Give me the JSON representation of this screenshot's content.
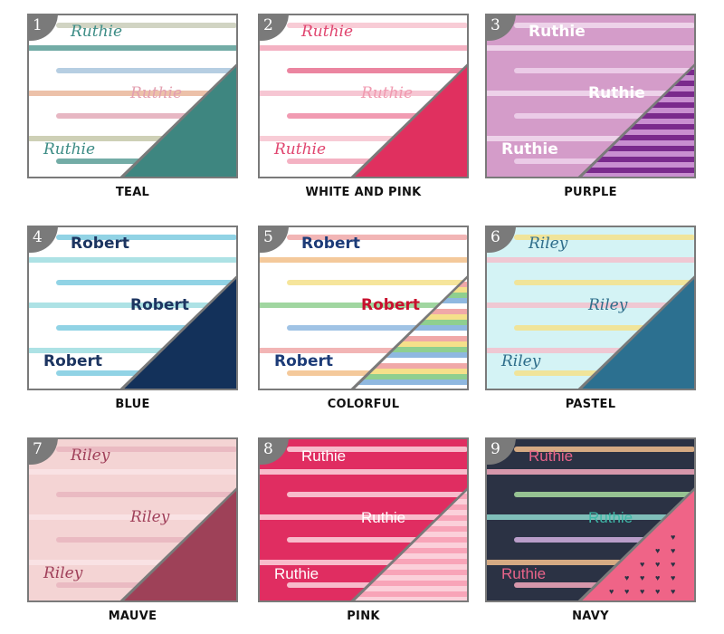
{
  "swatches": [
    {
      "number": "1",
      "label": "TEAL",
      "name": "Ruthie",
      "name_style": "script",
      "bg": "#ffffff",
      "stripes": [
        "#c9cdb8",
        "#5a9e96",
        "#a9c6dd",
        "#e9b69a",
        "#e3aab8",
        "#c5c8a9",
        "#5a9e96"
      ],
      "name_colors": [
        "#3c8c85",
        "#e3a0b0",
        "#3c8c85"
      ],
      "triangle": {
        "type": "solid",
        "color": "#3e8680"
      }
    },
    {
      "number": "2",
      "label": "WHITE AND PINK",
      "name": "Ruthie",
      "name_style": "script",
      "bg": "#ffffff",
      "stripes": [
        "#f7c3cf",
        "#f2a5b8",
        "#e8708f",
        "#f4bccb",
        "#ee8aa5",
        "#f7c3cf",
        "#f2a5b8"
      ],
      "name_colors": [
        "#e0456f",
        "#f09ab0",
        "#e0456f"
      ],
      "triangle": {
        "type": "solid",
        "color": "#e0305f"
      }
    },
    {
      "number": "3",
      "label": "PURPLE",
      "name": "Ruthie",
      "name_style": "bold",
      "bg": "#d49cc9",
      "stripes": [
        "#f1dcef",
        "#f1dcef",
        "#eed3ec",
        "#f1dcef",
        "#eed3ec",
        "#f1dcef",
        "#eed3ec"
      ],
      "name_colors": [
        "#ffffff",
        "#ffffff",
        "#ffffff"
      ],
      "triangle": {
        "type": "stripes",
        "colors": [
          "#7a2a8c",
          "#c98fd0"
        ]
      }
    },
    {
      "number": "4",
      "label": "BLUE",
      "name": "Robert",
      "name_style": "bold",
      "bg": "#ffffff",
      "stripes": [
        "#7ecbe0",
        "#9fdde0",
        "#7ecbe0",
        "#9fdde0",
        "#7ecbe0",
        "#9fdde0",
        "#7ecbe0"
      ],
      "name_colors": [
        "#1d3561",
        "#1d3561",
        "#1d3561"
      ],
      "triangle": {
        "type": "solid",
        "color": "#13315a"
      }
    },
    {
      "number": "5",
      "label": "COLORFUL",
      "name": "Robert",
      "name_style": "bold",
      "bg": "#ffffff",
      "stripes": [
        "#f0a8a8",
        "#f2c08a",
        "#f5e08a",
        "#8fcf8f",
        "#8fb8e0",
        "#f0a8a8",
        "#f2c08a"
      ],
      "name_colors": [
        "#1d3c78",
        "#c8102e",
        "#1d3c78"
      ],
      "triangle": {
        "type": "stripes",
        "colors": [
          "#f0a8a8",
          "#f5e08a",
          "#8fcf8f",
          "#8fb8e0",
          "#ffffff"
        ]
      }
    },
    {
      "number": "6",
      "label": "PASTEL",
      "name": "Riley",
      "name_style": "script",
      "bg": "#d4f3f5",
      "stripes": [
        "#f5e08a",
        "#f3c0cc",
        "#f5e08a",
        "#f3c0cc",
        "#f5e08a",
        "#f3c0cc",
        "#f5e08a"
      ],
      "name_colors": [
        "#2e6d8a",
        "#2e6d8a",
        "#2e6d8a"
      ],
      "triangle": {
        "type": "solid",
        "color": "#2c7090"
      }
    },
    {
      "number": "7",
      "label": "MAUVE",
      "name": "Riley",
      "name_style": "script",
      "bg": "#f4d4d4",
      "stripes": [
        "#e8b5be",
        "#f9e4e6",
        "#e8b5be",
        "#f9e4e6",
        "#e8b5be",
        "#f9e4e6",
        "#e8b5be"
      ],
      "name_colors": [
        "#a0405a",
        "#a0405a",
        "#a0405a"
      ],
      "triangle": {
        "type": "solid",
        "color": "#9e4158"
      }
    },
    {
      "number": "8",
      "label": "PINK",
      "name": "Ruthie",
      "name_style": "plain",
      "bg": "#e02d61",
      "stripes": [
        "#fbd5de",
        "#fbd5de",
        "#fbd5de",
        "#fbd5de",
        "#fbd5de",
        "#fbd5de",
        "#fbd5de"
      ],
      "name_colors": [
        "#ffffff",
        "#ffffff",
        "#ffffff"
      ],
      "triangle": {
        "type": "stripes",
        "colors": [
          "#f8a4b8",
          "#fbd0da"
        ]
      }
    },
    {
      "number": "9",
      "label": "NAVY",
      "name": "Ruthie",
      "name_style": "plain",
      "bg": "#2b3244",
      "stripes": [
        "#f3c08e",
        "#f4a9bd",
        "#a9dca0",
        "#8fd8cf",
        "#d2b0e0",
        "#f3c08e",
        "#f4a9bd"
      ],
      "name_colors": [
        "#e8648a",
        "#3fb8a8",
        "#e8648a"
      ],
      "triangle": {
        "type": "hearts",
        "color": "#ef6487",
        "heart_color": "#2b3244"
      }
    }
  ]
}
